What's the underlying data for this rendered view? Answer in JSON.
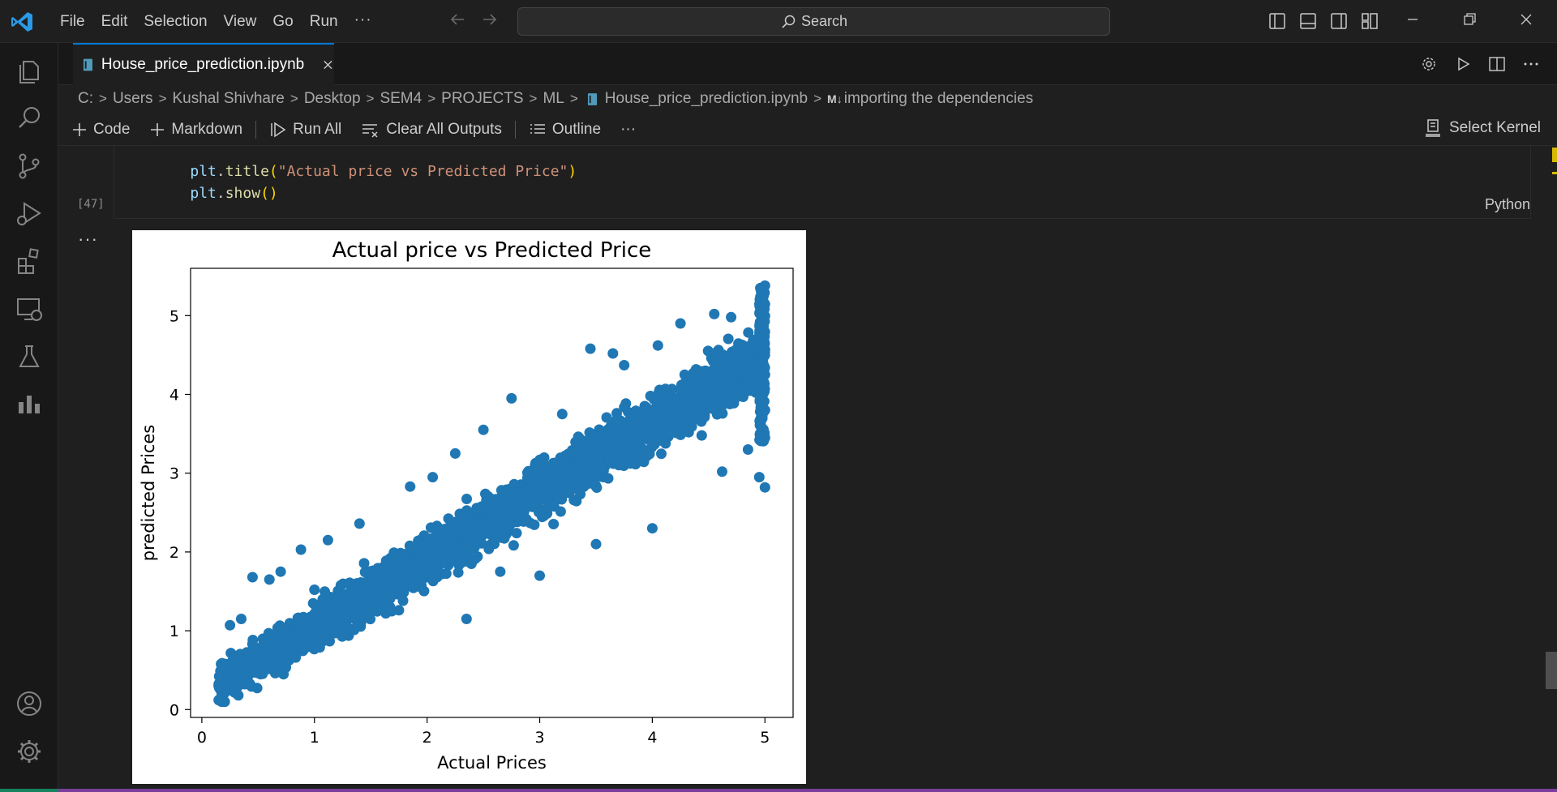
{
  "titlebar": {
    "menu": [
      "File",
      "Edit",
      "Selection",
      "View",
      "Go",
      "Run"
    ],
    "more": "···",
    "search_placeholder": "Search"
  },
  "activity_bar": {
    "icons": [
      "explorer-icon",
      "search-icon",
      "source-control-icon",
      "run-debug-icon",
      "extensions-icon",
      "remote-explorer-icon",
      "testing-icon",
      "chart-icon",
      "account-icon",
      "settings-gear-icon"
    ]
  },
  "tab": {
    "label": "House_price_prediction.ipynb"
  },
  "breadcrumb": {
    "items": [
      "C:",
      "Users",
      "Kushal Shivhare",
      "Desktop",
      "SEM4",
      "PROJECTS",
      "ML",
      "House_price_prediction.ipynb"
    ],
    "md_badge": "M↓",
    "last": "importing the dependencies"
  },
  "toolbar": {
    "code": "Code",
    "markdown": "Markdown",
    "run_all": "Run All",
    "clear_all": "Clear All Outputs",
    "outline": "Outline",
    "more": "···",
    "select_kernel": "Select Kernel"
  },
  "cell": {
    "line1": {
      "obj": "plt",
      "fn": "title",
      "arg": "\"Actual price vs Predicted Price\""
    },
    "line2": {
      "obj": "plt",
      "fn": "show"
    },
    "exec_count": "[47]",
    "language": "Python",
    "output_dots": "···"
  },
  "colors": {
    "accent": "#0078d4",
    "points": "#1f77b4",
    "status_bar": "#7a3e9a"
  },
  "chart_data": {
    "type": "scatter",
    "title": "Actual price vs Predicted Price",
    "xlabel": "Actual Prices",
    "ylabel": "predicted Prices",
    "xlim": [
      -0.1,
      5.25
    ],
    "ylim": [
      -0.1,
      5.6
    ],
    "xticks": [
      0,
      1,
      2,
      3,
      4,
      5
    ],
    "yticks": [
      0,
      1,
      2,
      3,
      4,
      5
    ],
    "grid": false,
    "series": [
      {
        "color": "#1f77b4",
        "trend": {
          "slope": 0.86,
          "intercept": 0.2
        },
        "x_range": [
          0.15,
          5.0
        ],
        "points": [
          [
            0.15,
            0.12
          ],
          [
            0.15,
            0.3
          ],
          [
            0.25,
            1.07
          ],
          [
            0.35,
            1.15
          ],
          [
            0.45,
            1.68
          ],
          [
            0.6,
            1.65
          ],
          [
            0.7,
            1.75
          ],
          [
            0.88,
            2.03
          ],
          [
            1.0,
            1.52
          ],
          [
            1.12,
            2.15
          ],
          [
            1.3,
            1.03
          ],
          [
            1.4,
            2.36
          ],
          [
            1.75,
            1.26
          ],
          [
            1.85,
            2.83
          ],
          [
            2.05,
            2.95
          ],
          [
            2.25,
            3.25
          ],
          [
            2.35,
            1.15
          ],
          [
            2.5,
            3.55
          ],
          [
            2.65,
            1.75
          ],
          [
            2.75,
            3.95
          ],
          [
            3.0,
            1.7
          ],
          [
            3.2,
            3.75
          ],
          [
            3.45,
            4.58
          ],
          [
            3.5,
            2.1
          ],
          [
            3.65,
            4.52
          ],
          [
            3.75,
            4.37
          ],
          [
            4.0,
            2.3
          ],
          [
            4.05,
            4.62
          ],
          [
            4.25,
            4.9
          ],
          [
            4.5,
            4.0
          ],
          [
            4.55,
            5.02
          ],
          [
            4.62,
            3.02
          ],
          [
            4.7,
            4.98
          ],
          [
            4.85,
            3.3
          ],
          [
            4.95,
            2.95
          ],
          [
            5.0,
            2.82
          ],
          [
            5.0,
            5.38
          ],
          [
            5.0,
            3.45
          ],
          [
            5.0,
            3.8
          ],
          [
            5.0,
            4.25
          ]
        ]
      }
    ]
  }
}
